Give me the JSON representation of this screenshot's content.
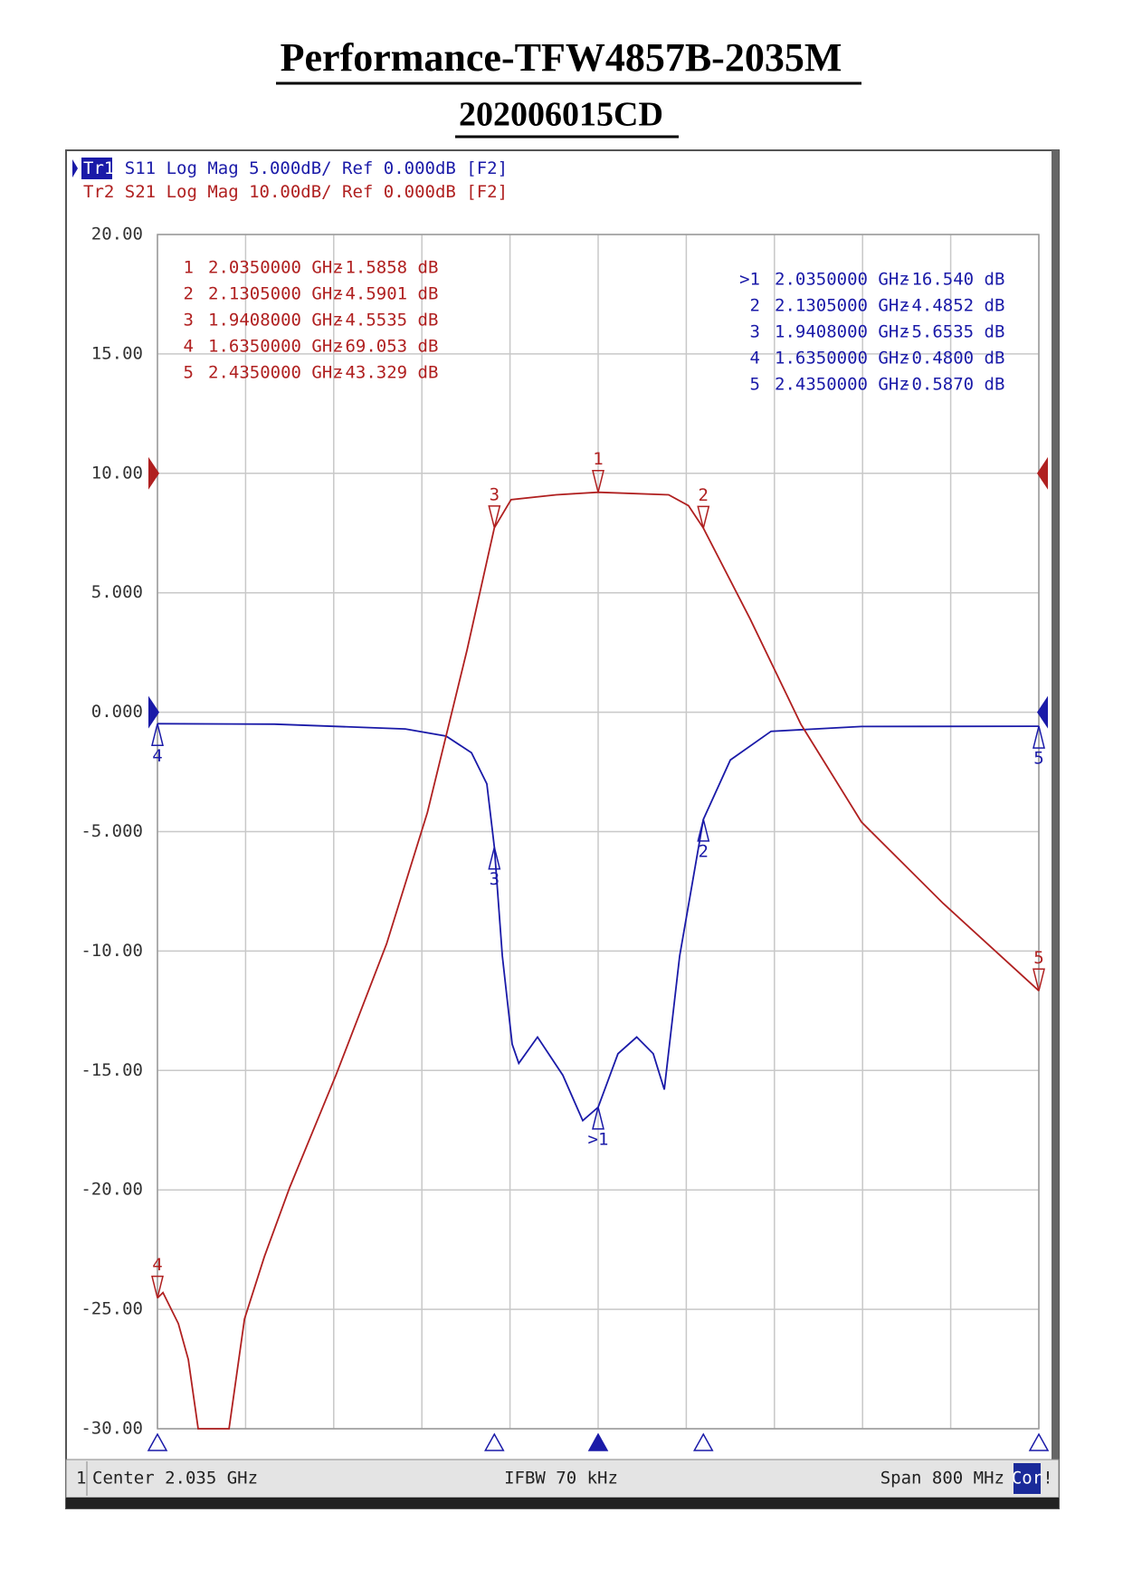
{
  "chart_data": {
    "type": "line",
    "title": "Performance-TFW4857B-2035M",
    "subtitle": "202006015CD",
    "traces": [
      {
        "label": "Tr1",
        "setting": "Log Mag 5.000dB/ Ref 0.000dB [F2]"
      },
      {
        "label": "Tr2",
        "setting": "Log Mag 10.00dB/ Ref 0.000dB [F2]"
      }
    ],
    "xlim": [
      1.635,
      2.435
    ],
    "xticks": [
      1.635,
      1.715,
      1.795,
      1.875,
      1.955,
      2.035,
      2.115,
      2.195,
      2.275,
      2.355,
      2.435
    ],
    "ylim": [
      -30,
      20
    ],
    "yticks": [
      {
        "value": 20,
        "label": "20.00"
      },
      {
        "value": 15,
        "label": "15.00"
      },
      {
        "value": 10,
        "label": "10.00"
      },
      {
        "value": 5,
        "label": "5.000"
      },
      {
        "value": 0,
        "label": "0.000"
      },
      {
        "value": -5,
        "label": "-5.000"
      },
      {
        "value": -10,
        "label": "-10.00"
      },
      {
        "value": -15,
        "label": "-15.00"
      },
      {
        "value": -20,
        "label": "-20.00"
      },
      {
        "value": -25,
        "label": "-25.00"
      },
      {
        "value": -30,
        "label": "-30.00"
      }
    ],
    "y2lim": [
      -80,
      20
    ],
    "grid": true,
    "series": [
      {
        "name": "S11",
        "color": "#1a1aa8",
        "x": [
          1.635,
          1.741,
          1.86,
          1.897,
          1.92,
          1.934,
          1.9408,
          1.948,
          1.957,
          1.963,
          1.98,
          2.003,
          2.021,
          2.035,
          2.053,
          2.07,
          2.085,
          2.095,
          2.109,
          2.1305,
          2.155,
          2.192,
          2.274,
          2.435
        ],
        "values": [
          -0.48,
          -0.5,
          -0.7,
          -1.0,
          -1.7,
          -3.0,
          -5.6535,
          -10.2,
          -13.9,
          -14.7,
          -13.6,
          -15.2,
          -17.1,
          -16.54,
          -14.3,
          -13.6,
          -14.3,
          -15.8,
          -10.2,
          -4.4852,
          -2.0,
          -0.8,
          -0.6,
          -0.587
        ],
        "markers": [
          {
            "id": ">1",
            "x": 2.035,
            "x_label": "2.0350000 GHz",
            "value": -16.54,
            "value_label": "-16.540 dB"
          },
          {
            "id": "2",
            "x": 2.1305,
            "x_label": "2.1305000 GHz",
            "value": -4.4852,
            "value_label": "-4.4852 dB"
          },
          {
            "id": "3",
            "x": 1.9408,
            "x_label": "1.9408000 GHz",
            "value": -5.6535,
            "value_label": "-5.6535 dB"
          },
          {
            "id": "4",
            "x": 1.635,
            "x_label": "1.6350000 GHz",
            "value": -0.48,
            "value_label": "-0.4800 dB"
          },
          {
            "id": "5",
            "x": 2.435,
            "x_label": "2.4350000 GHz",
            "value": -0.587,
            "value_label": "-0.5870 dB"
          }
        ]
      },
      {
        "name": "S21",
        "color": "#b02020",
        "axis": "y2",
        "x": [
          1.635,
          1.64,
          1.654,
          1.663,
          1.672,
          1.7,
          1.714,
          1.732,
          1.755,
          1.797,
          1.843,
          1.88,
          1.916,
          1.9408,
          1.956,
          1.997,
          2.035,
          2.099,
          2.117,
          2.1305,
          2.173,
          2.219,
          2.274,
          2.348,
          2.435
        ],
        "values": [
          -69.053,
          -68.6,
          -71.2,
          -74.2,
          -80,
          -80,
          -70.8,
          -65.6,
          -59.8,
          -50.4,
          -39.4,
          -28.4,
          -14.8,
          -4.5535,
          -2.2,
          -1.8,
          -1.5858,
          -1.8,
          -2.7,
          -4.5901,
          -12.2,
          -21,
          -29.2,
          -36,
          -43.329
        ],
        "markers": [
          {
            "id": "1",
            "x": 2.035,
            "x_label": "2.0350000 GHz",
            "value": -1.5858,
            "value_label": "-1.5858 dB"
          },
          {
            "id": "2",
            "x": 2.1305,
            "x_label": "2.1305000 GHz",
            "value": -4.5901,
            "value_label": "-4.5901 dB"
          },
          {
            "id": "3",
            "x": 1.9408,
            "x_label": "1.9408000 GHz",
            "value": -4.5535,
            "value_label": "-4.5535 dB"
          },
          {
            "id": "4",
            "x": 1.635,
            "x_label": "1.6350000 GHz",
            "value": -69.053,
            "value_label": "-69.053 dB"
          },
          {
            "id": "5",
            "x": 2.435,
            "x_label": "2.4350000 GHz",
            "value": -43.329,
            "value_label": "-43.329 dB"
          }
        ]
      }
    ],
    "footer": {
      "channel": "1",
      "center": "Center 2.035 GHz",
      "ifbw": "IFBW 70 kHz",
      "span": "Span 800 MHz",
      "cor": "Cor",
      "flag": "!"
    }
  }
}
